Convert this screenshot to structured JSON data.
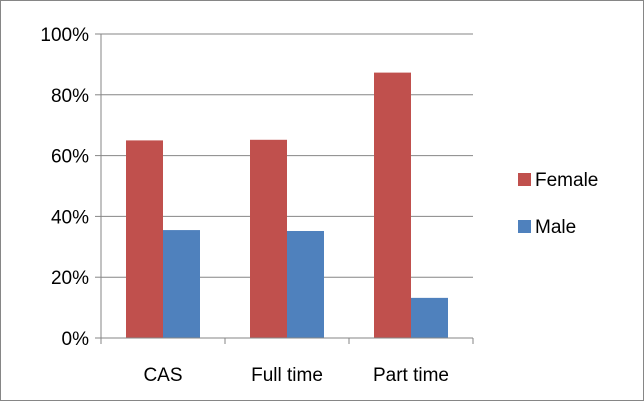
{
  "chart_data": {
    "type": "bar",
    "categories": [
      "CAS",
      "Full time",
      "Part time"
    ],
    "series": [
      {
        "name": "Female",
        "values": [
          65,
          65.2,
          87.3
        ],
        "color": "#c0504d"
      },
      {
        "name": "Male",
        "values": [
          35.5,
          35.2,
          13.2
        ],
        "color": "#4f81bd"
      }
    ],
    "ylim": [
      0,
      100
    ],
    "yticks": [
      0,
      20,
      40,
      60,
      80,
      100
    ],
    "ytick_labels": [
      "0%",
      "20%",
      "40%",
      "60%",
      "80%",
      "100%"
    ],
    "grid": true,
    "legend_position": "right",
    "title": "",
    "xlabel": "",
    "ylabel": ""
  }
}
